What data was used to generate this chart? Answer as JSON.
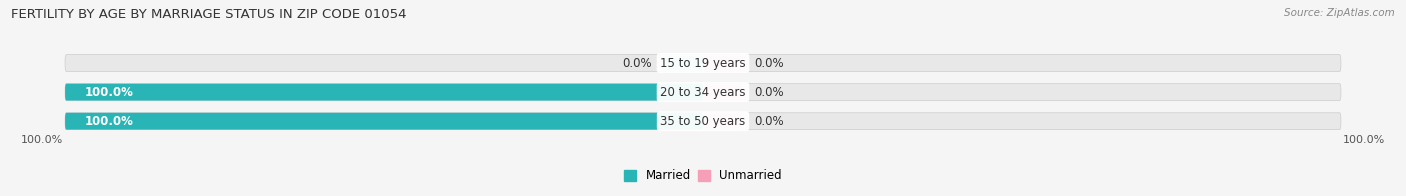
{
  "title": "FERTILITY BY AGE BY MARRIAGE STATUS IN ZIP CODE 01054",
  "source": "Source: ZipAtlas.com",
  "categories": [
    "15 to 19 years",
    "20 to 34 years",
    "35 to 50 years"
  ],
  "married_values": [
    0.0,
    100.0,
    100.0
  ],
  "unmarried_values": [
    0.0,
    0.0,
    0.0
  ],
  "married_color": "#29b5b5",
  "unmarried_color": "#f5a0b8",
  "married_color_light": "#7dd4d4",
  "bar_bg_color": "#e8e8e8",
  "bar_height": 0.58,
  "title_fontsize": 9.5,
  "label_fontsize": 8.5,
  "tick_fontsize": 8,
  "legend_fontsize": 8.5,
  "x_left_label": "100.0%",
  "x_right_label": "100.0%",
  "center_label_married_left": [
    "0.0%",
    "100.0%",
    "100.0%"
  ],
  "center_label_unmarried_right": [
    "0.0%",
    "0.0%",
    "0.0%"
  ],
  "background_color": "#f5f5f5",
  "bar_edge_color": "#cccccc"
}
